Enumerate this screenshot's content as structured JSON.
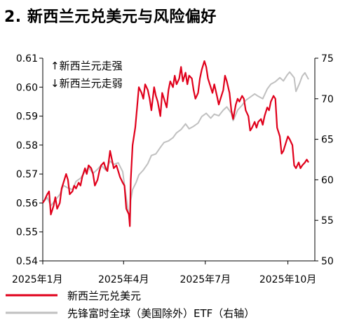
{
  "chart_data": {
    "type": "line",
    "title": "2. 新西兰元兑美元与风险偏好",
    "annotations": [
      "↑新西兰元走强",
      "↓新西兰元走弱"
    ],
    "x_ticks": [
      "2025年1月",
      "2025年4月",
      "2025年7月",
      "2025年10月"
    ],
    "x_range": [
      "2025-01-01",
      "2025-10-31"
    ],
    "y_left": {
      "range": [
        0.54,
        0.61
      ],
      "ticks": [
        "0.54",
        "0.55",
        "0.56",
        "0.57",
        "0.58",
        "0.59",
        "0.60",
        "0.61"
      ]
    },
    "y_right": {
      "range": [
        50,
        75
      ],
      "ticks": [
        "50",
        "55",
        "60",
        "65",
        "70",
        "75"
      ]
    },
    "legend_placement": "bottom",
    "series": [
      {
        "name": "新西兰元兑美元",
        "axis": "left",
        "color": "#e0001b",
        "data": [
          [
            "2025-01-01",
            0.56
          ],
          [
            "2025-01-03",
            0.561
          ],
          [
            "2025-01-06",
            0.563
          ],
          [
            "2025-01-08",
            0.564
          ],
          [
            "2025-01-10",
            0.556
          ],
          [
            "2025-01-13",
            0.559
          ],
          [
            "2025-01-15",
            0.562
          ],
          [
            "2025-01-17",
            0.558
          ],
          [
            "2025-01-20",
            0.56
          ],
          [
            "2025-01-22",
            0.565
          ],
          [
            "2025-01-24",
            0.567
          ],
          [
            "2025-01-27",
            0.57
          ],
          [
            "2025-01-29",
            0.568
          ],
          [
            "2025-01-31",
            0.563
          ],
          [
            "2025-02-03",
            0.564
          ],
          [
            "2025-02-05",
            0.566
          ],
          [
            "2025-02-07",
            0.565
          ],
          [
            "2025-02-10",
            0.567
          ],
          [
            "2025-02-12",
            0.566
          ],
          [
            "2025-02-14",
            0.569
          ],
          [
            "2025-02-17",
            0.572
          ],
          [
            "2025-02-19",
            0.57
          ],
          [
            "2025-02-21",
            0.573
          ],
          [
            "2025-02-24",
            0.572
          ],
          [
            "2025-02-26",
            0.57
          ],
          [
            "2025-02-28",
            0.566
          ],
          [
            "2025-03-03",
            0.568
          ],
          [
            "2025-03-05",
            0.571
          ],
          [
            "2025-03-07",
            0.573
          ],
          [
            "2025-03-10",
            0.574
          ],
          [
            "2025-03-12",
            0.572
          ],
          [
            "2025-03-14",
            0.571
          ],
          [
            "2025-03-17",
            0.578
          ],
          [
            "2025-03-19",
            0.575
          ],
          [
            "2025-03-21",
            0.572
          ],
          [
            "2025-03-24",
            0.573
          ],
          [
            "2025-03-26",
            0.571
          ],
          [
            "2025-03-28",
            0.569
          ],
          [
            "2025-03-31",
            0.567
          ],
          [
            "2025-04-02",
            0.566
          ],
          [
            "2025-04-04",
            0.558
          ],
          [
            "2025-04-07",
            0.556
          ],
          [
            "2025-04-08",
            0.552
          ],
          [
            "2025-04-09",
            0.568
          ],
          [
            "2025-04-11",
            0.58
          ],
          [
            "2025-04-14",
            0.586
          ],
          [
            "2025-04-16",
            0.593
          ],
          [
            "2025-04-18",
            0.6
          ],
          [
            "2025-04-21",
            0.598
          ],
          [
            "2025-04-23",
            0.596
          ],
          [
            "2025-04-25",
            0.601
          ],
          [
            "2025-04-28",
            0.599
          ],
          [
            "2025-04-30",
            0.596
          ],
          [
            "2025-05-02",
            0.592
          ],
          [
            "2025-05-05",
            0.6
          ],
          [
            "2025-05-07",
            0.597
          ],
          [
            "2025-05-09",
            0.595
          ],
          [
            "2025-05-12",
            0.59
          ],
          [
            "2025-05-14",
            0.598
          ],
          [
            "2025-05-16",
            0.596
          ],
          [
            "2025-05-19",
            0.593
          ],
          [
            "2025-05-21",
            0.599
          ],
          [
            "2025-05-23",
            0.602
          ],
          [
            "2025-05-26",
            0.6
          ],
          [
            "2025-05-28",
            0.604
          ],
          [
            "2025-05-30",
            0.601
          ],
          [
            "2025-06-02",
            0.603
          ],
          [
            "2025-06-04",
            0.607
          ],
          [
            "2025-06-06",
            0.602
          ],
          [
            "2025-06-09",
            0.605
          ],
          [
            "2025-06-11",
            0.601
          ],
          [
            "2025-06-13",
            0.604
          ],
          [
            "2025-06-16",
            0.603
          ],
          [
            "2025-06-18",
            0.599
          ],
          [
            "2025-06-20",
            0.596
          ],
          [
            "2025-06-23",
            0.598
          ],
          [
            "2025-06-25",
            0.603
          ],
          [
            "2025-06-27",
            0.606
          ],
          [
            "2025-06-30",
            0.609
          ],
          [
            "2025-07-02",
            0.607
          ],
          [
            "2025-07-04",
            0.603
          ],
          [
            "2025-07-07",
            0.6
          ],
          [
            "2025-07-09",
            0.598
          ],
          [
            "2025-07-11",
            0.601
          ],
          [
            "2025-07-14",
            0.597
          ],
          [
            "2025-07-16",
            0.594
          ],
          [
            "2025-07-18",
            0.596
          ],
          [
            "2025-07-21",
            0.599
          ],
          [
            "2025-07-23",
            0.604
          ],
          [
            "2025-07-25",
            0.602
          ],
          [
            "2025-07-28",
            0.598
          ],
          [
            "2025-07-30",
            0.592
          ],
          [
            "2025-08-01",
            0.589
          ],
          [
            "2025-08-04",
            0.594
          ],
          [
            "2025-08-06",
            0.596
          ],
          [
            "2025-08-08",
            0.595
          ],
          [
            "2025-08-11",
            0.597
          ],
          [
            "2025-08-13",
            0.596
          ],
          [
            "2025-08-15",
            0.592
          ],
          [
            "2025-08-18",
            0.59
          ],
          [
            "2025-08-20",
            0.585
          ],
          [
            "2025-08-22",
            0.586
          ],
          [
            "2025-08-25",
            0.588
          ],
          [
            "2025-08-27",
            0.586
          ],
          [
            "2025-08-29",
            0.588
          ],
          [
            "2025-09-01",
            0.589
          ],
          [
            "2025-09-03",
            0.587
          ],
          [
            "2025-09-05",
            0.59
          ],
          [
            "2025-09-08",
            0.593
          ],
          [
            "2025-09-10",
            0.592
          ],
          [
            "2025-09-12",
            0.595
          ],
          [
            "2025-09-15",
            0.597
          ],
          [
            "2025-09-17",
            0.596
          ],
          [
            "2025-09-19",
            0.586
          ],
          [
            "2025-09-22",
            0.583
          ],
          [
            "2025-09-24",
            0.577
          ],
          [
            "2025-09-26",
            0.578
          ],
          [
            "2025-09-29",
            0.581
          ],
          [
            "2025-10-01",
            0.583
          ],
          [
            "2025-10-03",
            0.582
          ],
          [
            "2025-10-06",
            0.58
          ],
          [
            "2025-10-08",
            0.573
          ],
          [
            "2025-10-10",
            0.572
          ],
          [
            "2025-10-13",
            0.574
          ],
          [
            "2025-10-15",
            0.572
          ],
          [
            "2025-10-17",
            0.573
          ],
          [
            "2025-10-20",
            0.574
          ],
          [
            "2025-10-22",
            0.575
          ],
          [
            "2025-10-24",
            0.574
          ]
        ]
      },
      {
        "name": "先锋富时全球（美国除外）ETF（右轴）",
        "axis": "right",
        "color": "#c0c0c0",
        "data": [
          [
            "2025-01-01",
            57.2
          ],
          [
            "2025-01-06",
            57.8
          ],
          [
            "2025-01-10",
            56.8
          ],
          [
            "2025-01-15",
            57.5
          ],
          [
            "2025-01-20",
            58.2
          ],
          [
            "2025-01-24",
            59.3
          ],
          [
            "2025-01-29",
            59.0
          ],
          [
            "2025-02-03",
            58.8
          ],
          [
            "2025-02-07",
            59.8
          ],
          [
            "2025-02-12",
            60.2
          ],
          [
            "2025-02-17",
            61.0
          ],
          [
            "2025-02-21",
            61.5
          ],
          [
            "2025-02-26",
            60.8
          ],
          [
            "2025-03-03",
            61.3
          ],
          [
            "2025-03-07",
            61.8
          ],
          [
            "2025-03-12",
            61.2
          ],
          [
            "2025-03-17",
            62.3
          ],
          [
            "2025-03-21",
            61.9
          ],
          [
            "2025-03-26",
            62.1
          ],
          [
            "2025-03-31",
            61.0
          ],
          [
            "2025-04-03",
            58.5
          ],
          [
            "2025-04-07",
            55.5
          ],
          [
            "2025-04-08",
            54.6
          ],
          [
            "2025-04-09",
            57.5
          ],
          [
            "2025-04-11",
            58.8
          ],
          [
            "2025-04-15",
            59.7
          ],
          [
            "2025-04-18",
            60.6
          ],
          [
            "2025-04-23",
            61.2
          ],
          [
            "2025-04-28",
            62.0
          ],
          [
            "2025-05-02",
            63.0
          ],
          [
            "2025-05-07",
            63.2
          ],
          [
            "2025-05-12",
            64.0
          ],
          [
            "2025-05-16",
            64.6
          ],
          [
            "2025-05-21",
            64.8
          ],
          [
            "2025-05-26",
            65.2
          ],
          [
            "2025-05-30",
            65.8
          ],
          [
            "2025-06-04",
            66.2
          ],
          [
            "2025-06-09",
            66.9
          ],
          [
            "2025-06-13",
            66.3
          ],
          [
            "2025-06-18",
            66.6
          ],
          [
            "2025-06-23",
            67.0
          ],
          [
            "2025-06-27",
            67.8
          ],
          [
            "2025-07-02",
            68.2
          ],
          [
            "2025-07-07",
            67.6
          ],
          [
            "2025-07-11",
            68.1
          ],
          [
            "2025-07-16",
            67.9
          ],
          [
            "2025-07-21",
            68.6
          ],
          [
            "2025-07-25",
            69.0
          ],
          [
            "2025-07-30",
            68.2
          ],
          [
            "2025-08-01",
            67.3
          ],
          [
            "2025-08-06",
            68.6
          ],
          [
            "2025-08-11",
            69.2
          ],
          [
            "2025-08-15",
            69.8
          ],
          [
            "2025-08-20",
            70.2
          ],
          [
            "2025-08-25",
            70.6
          ],
          [
            "2025-08-29",
            70.3
          ],
          [
            "2025-09-03",
            70.0
          ],
          [
            "2025-09-08",
            71.2
          ],
          [
            "2025-09-12",
            71.8
          ],
          [
            "2025-09-17",
            72.1
          ],
          [
            "2025-09-22",
            72.6
          ],
          [
            "2025-09-26",
            72.2
          ],
          [
            "2025-09-30",
            72.9
          ],
          [
            "2025-10-03",
            73.3
          ],
          [
            "2025-10-08",
            72.6
          ],
          [
            "2025-10-10",
            70.9
          ],
          [
            "2025-10-14",
            71.9
          ],
          [
            "2025-10-17",
            72.8
          ],
          [
            "2025-10-20",
            73.2
          ],
          [
            "2025-10-24",
            72.4
          ]
        ]
      }
    ]
  }
}
